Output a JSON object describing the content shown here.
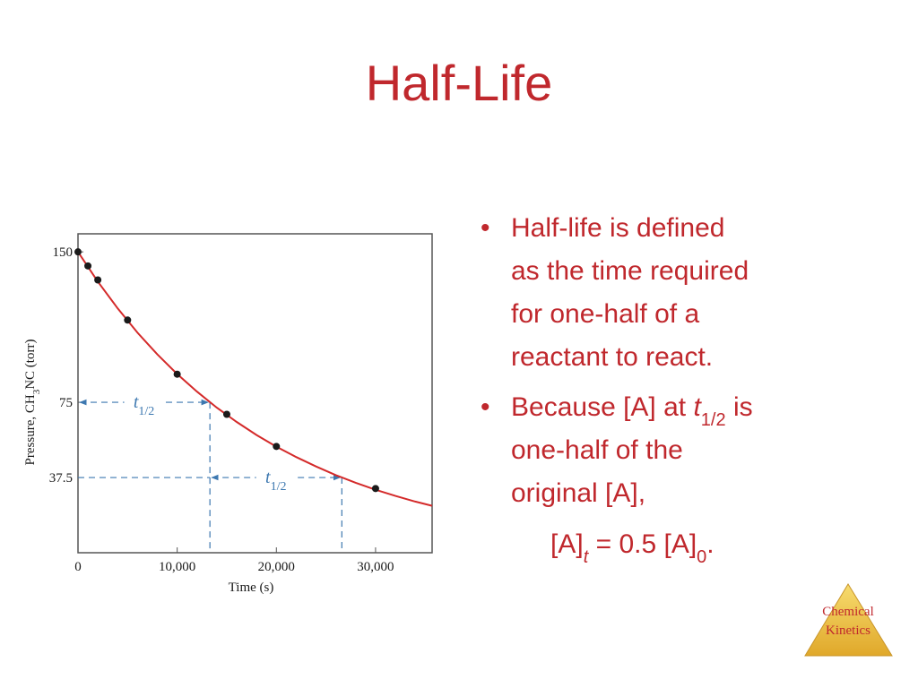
{
  "slide_title": "Half-Life",
  "chart_data": {
    "type": "scatter",
    "xlabel": "Time (s)",
    "ylabel_parts": [
      "Pressure, CH",
      "3",
      "NC (torr)"
    ],
    "xlim": [
      0,
      35700
    ],
    "ylim": [
      0,
      159
    ],
    "xticks": [
      0,
      {
        "value": 10000,
        "label": "10,000"
      },
      {
        "value": 20000,
        "label": "20,000"
      },
      {
        "value": 30000,
        "label": "30,000"
      }
    ],
    "yticks": [
      37.5,
      75,
      150
    ],
    "points": {
      "color": "#1a1a1a",
      "x": [
        0,
        1000,
        2000,
        5000,
        10000,
        15000,
        20000,
        30000
      ],
      "values": [
        150,
        143,
        136,
        116,
        89,
        69,
        53,
        32
      ]
    },
    "curve": {
      "color": "#d42a2a",
      "x": [
        0,
        2000,
        4000,
        6000,
        8000,
        10000,
        12000,
        14000,
        16000,
        18000,
        20000,
        22000,
        24000,
        26000,
        28000,
        30000,
        32000,
        34000,
        35700
      ],
      "values": [
        150,
        135.2,
        121.8,
        109.7,
        98.9,
        89.1,
        80.3,
        72.3,
        65.2,
        58.7,
        52.9,
        47.7,
        43.0,
        38.7,
        34.9,
        31.4,
        28.3,
        25.5,
        23.4
      ]
    },
    "half_life_markers": [
      {
        "x_start": 0,
        "x_end": 13300,
        "y": 75,
        "label": {
          "symbol": "t",
          "subscript": "1/2"
        }
      },
      {
        "x_start": 13300,
        "x_end": 26600,
        "y": 37.5,
        "label": {
          "symbol": "t",
          "subscript": "1/2"
        }
      }
    ],
    "marker_color": "#3d78b0"
  },
  "bullets": [
    {
      "lines": [
        "Half-life is defined",
        "as the time required",
        "for one-half of a",
        "reactant to react."
      ]
    },
    {
      "first_line": [
        "Because [A] at ",
        "t",
        "1/2",
        " is"
      ],
      "lines": [
        "one-half of the",
        "original [A],"
      ]
    }
  ],
  "equation": [
    "[A]",
    "t",
    " = 0.5 [A]",
    "0",
    "."
  ],
  "logo": [
    "Chemical",
    "Kinetics"
  ]
}
